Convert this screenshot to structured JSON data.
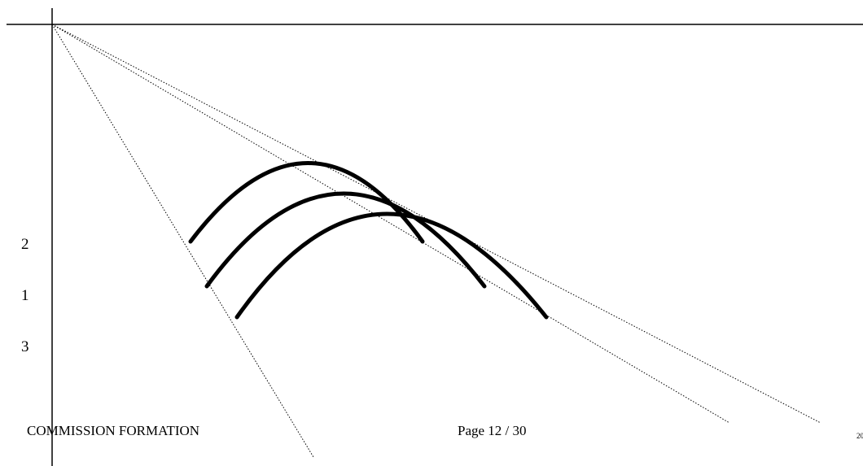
{
  "labels": {
    "curve_2": "2",
    "curve_1": "1",
    "curve_3": "3"
  },
  "footer": {
    "left": "COMMISSION FORMATION",
    "center": "Page 12 / 30",
    "right_partial": "20"
  }
}
